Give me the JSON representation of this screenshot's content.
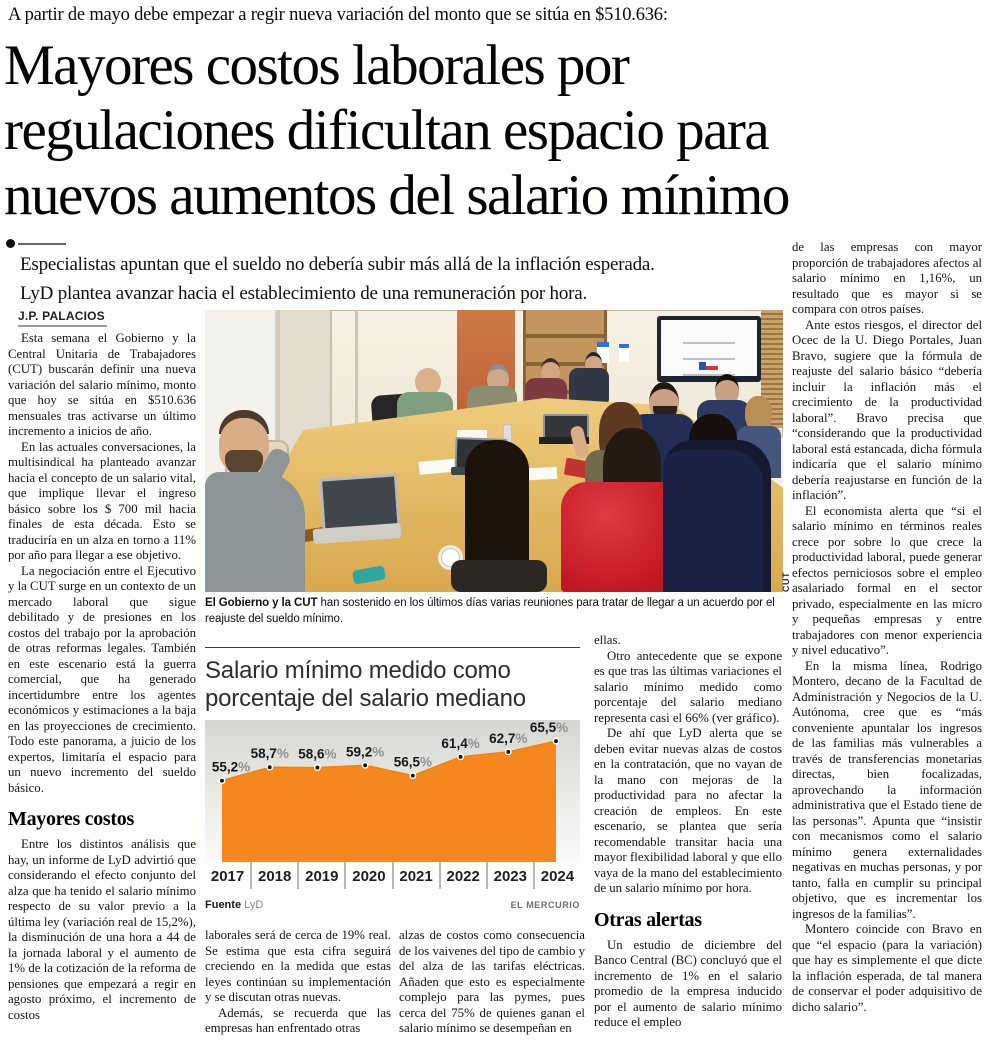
{
  "kicker": "A partir de mayo debe empezar a regir nueva variación del monto que se sitúa en $510.636:",
  "headline": {
    "line1": "Mayores costos laborales por",
    "line2": "regulaciones dificultan espacio para",
    "line3": "nuevos aumentos del salario mínimo"
  },
  "deck": {
    "line1": "Especialistas apuntan que el sueldo no debería subir más allá de la inflación esperada.",
    "line2": "LyD plantea avanzar hacia el establecimiento de una remuneración por hora."
  },
  "byline": "J.P. PALACIOS",
  "photo": {
    "credit": "CUT",
    "caption_bold": "El Gobierno y la CUT",
    "caption_rest": " han sostenido en los últimos días varias reuniones para tratar de llegar a un acuerdo por el reajuste del sueldo mínimo."
  },
  "chart_data": {
    "type": "area",
    "title": "Salario mínimo medido como porcentaje del salario mediano",
    "title_line1": "Salario mínimo medido como",
    "title_line2": "porcentaje del salario mediano",
    "categories": [
      "2017",
      "2018",
      "2019",
      "2020",
      "2021",
      "2022",
      "2023",
      "2024"
    ],
    "values": [
      55.2,
      58.7,
      58.6,
      59.2,
      56.5,
      61.4,
      62.7,
      65.5
    ],
    "labels": [
      "55,2%",
      "58,7%",
      "58,6%",
      "59,2%",
      "56,5%",
      "61,4%",
      "62,7%",
      "65,5%"
    ],
    "ylim": [
      34,
      71
    ],
    "xlabel": "",
    "ylabel": "",
    "grid": false,
    "legend": false,
    "fill": "#F6871F",
    "edge": "#ee820f",
    "source_bold": "Fuente",
    "source": "LyD",
    "credit": "EL MERCURIO"
  },
  "columns": {
    "col1": {
      "p1": "Esta semana el Gobierno y la Central Unitaria de Trabajadores (CUT) buscarán definir una nueva variación del salario mínimo, monto que hoy se sitúa en $510.636 mensuales tras activarse un último incremento a inicios de año.",
      "p2": "En las actuales conversaciones, la multisindical ha planteado avanzar hacia el concepto de un salario vital, que implique llevar el ingreso básico sobre los $ 700 mil hacia finales de esta década. Esto se traduciría en un alza en torno a 11% por año para llegar a ese objetivo.",
      "p3": "La negociación entre el Ejecutivo y la CUT surge en un contexto de un mercado laboral que sigue debilitado y de presiones en los costos del trabajo por la aprobación de otras reformas legales. También en este escenario está la guerra comercial, que ha generado incertidumbre entre los agentes económicos y estimaciones a la baja en las proyecciones de crecimiento. Todo este panorama, a juicio de los expertos, limitaría el espacio para un nuevo incremento del sueldo básico.",
      "heading": "Mayores costos",
      "p4": "Entre los distintos análisis que hay, un informe de LyD advirtió que considerando el efecto conjunto del alza que ha tenido el salario mínimo respecto de su valor previo a la última ley (variación real de 15,2%), la disminución de una hora a 44 de la jornada laboral y el aumento de 1% de la cotización de la reforma de pensiones que empezará a regir en agosto próximo, el incremento de costos"
    },
    "col2": {
      "p1": "laborales será de cerca de 19% real. Se estima que esta cifra seguirá creciendo en la medida que estas leyes continúan su implementación y se discutan otras nuevas.",
      "p2": "Además, se recuerda que las empresas han enfrentado otras"
    },
    "col3": {
      "p1": "alzas de costos como consecuencia de los vaivenes del tipo de cambio y del alza de las tarifas eléctricas. Añaden que esto es especialmente complejo para las pymes, pues cerca del 75% de quienes ganan el salario mínimo se desempeñan en"
    },
    "col4": {
      "p1": "ellas.",
      "p2": "Otro antecedente que se expone es que tras las últimas variaciones el salario mínimo medido como porcentaje del salario mediano representa casi el 66% (ver gráfico).",
      "p3": "De ahí que LyD alerta que se deben evitar nuevas alzas de costos en la contratación, que no vayan de la mano con mejoras de la productividad para no afectar la creación de empleos. En este escenario, se plantea que sería recomendable transitar hacia una mayor flexibilidad laboral y que ello vaya de la mano del establecimiento de un salario mínimo por hora.",
      "heading": "Otras alertas",
      "p4": "Un estudio de diciembre del Banco Central (BC) concluyó que el incremento de 1% en el salario promedio de la empresa inducido por el aumento de salario mínimo reduce el empleo"
    },
    "col5": {
      "p1": "de las empresas con mayor proporción de trabajadores afectos al salario mínimo en 1,16%, un resultado que es mayor si se compara con otros países.",
      "p2": "Ante estos riesgos, el director del Ocec de la U. Diego Portales, Juan Bravo, sugiere que la fórmula de reajuste del salario básico “debería incluir la inflación más el crecimiento de la productividad laboral”. Bravo precisa que “considerando que la productividad laboral está estancada, dicha fórmula indicaría que el salario mínimo debería reajustarse en función de la inflación”.",
      "p3": "El economista alerta que “si el salario mínimo en términos reales crece por sobre lo que crece la productividad laboral, puede generar efectos perniciosos sobre el empleo asalariado formal en el sector privado, especialmente en las micro y pequeñas empresas y entre trabajadores con menor experiencia y nivel educativo”.",
      "p4": "En la misma línea, Rodrigo Montero, decano de la Facultad de Administración y Negocios de la U. Autónoma, cree que es “más conveniente apuntalar los ingresos de las familias más vulnerables a través de transferencias monetarias directas, bien focalizadas, aprovechando la información administrativa que el Estado tiene de las personas”. Apunta que “insistir con mecanismos como el salario mínimo genera externalidades negativas en muchas personas, y por tanto, falla en cumplir su principal objetivo, que es incrementar los ingresos de la familias”.",
      "p5": "Montero coincide con Bravo en que “el espacio (para la variación) que hay es simplemente el que dicte la inflación esperada, de tal manera de conservar el poder adquisitivo de dicho salario”."
    }
  }
}
